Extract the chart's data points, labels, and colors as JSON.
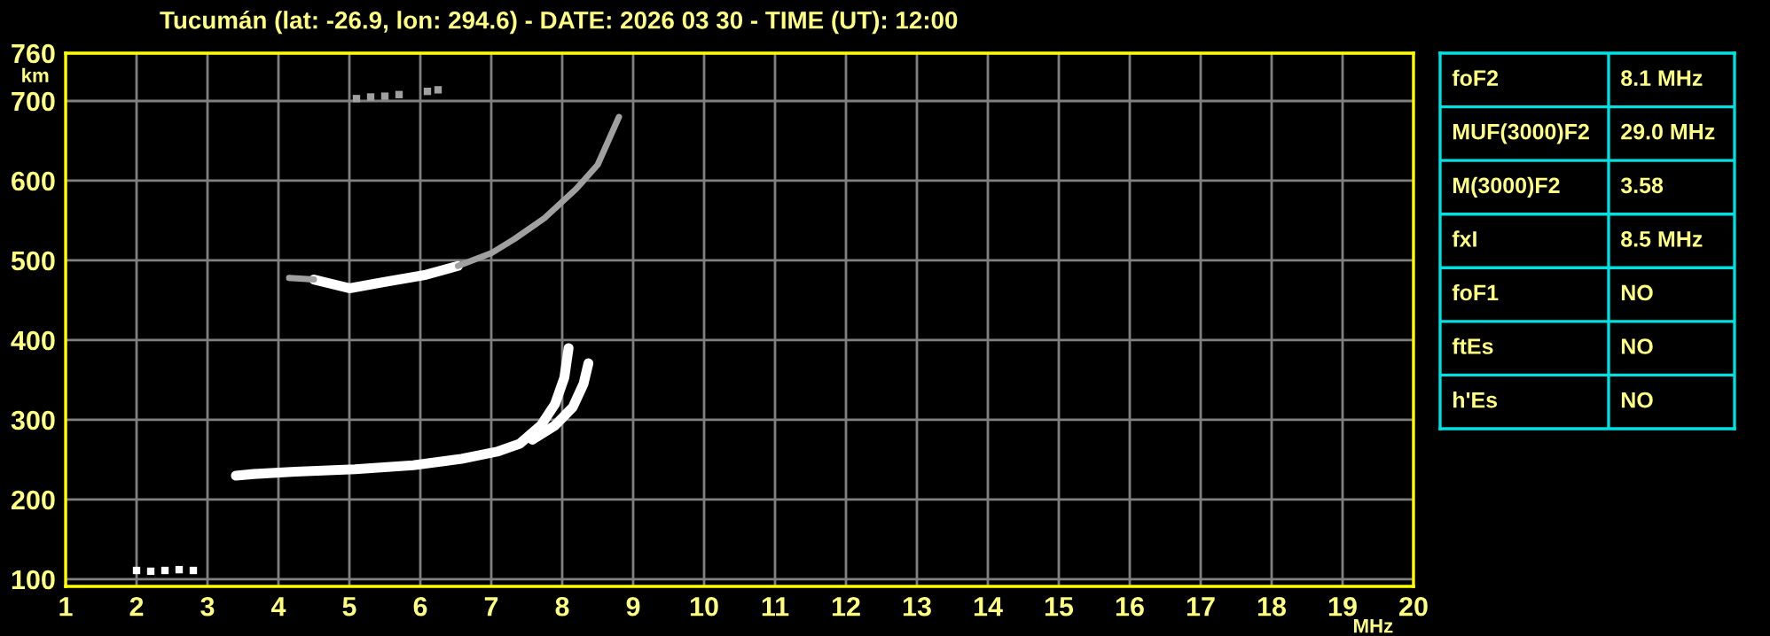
{
  "chart_data": [
    {
      "type": "line",
      "title": "Tucumán (lat: -26.9, lon: 294.6) - DATE: 2026 03 30 - TIME (UT): 12:00",
      "xlabel": "MHz",
      "ylabel": "km",
      "xlim": [
        1,
        20
      ],
      "ylim": [
        91,
        760
      ],
      "xticks": [
        1,
        2,
        3,
        4,
        5,
        6,
        7,
        8,
        9,
        10,
        11,
        12,
        13,
        14,
        15,
        16,
        17,
        18,
        19,
        20
      ],
      "yticks": [
        100,
        200,
        300,
        400,
        500,
        600,
        700,
        760
      ],
      "grid": true,
      "series": [
        {
          "color": "#ffffff",
          "x": [
            3.4,
            3.65,
            4.24,
            5.08,
            5.9,
            6.58,
            7.08,
            7.4,
            7.7,
            7.9,
            8.03,
            8.09
          ],
          "values": [
            230,
            232,
            235,
            238,
            243,
            251,
            260,
            270,
            293,
            320,
            353,
            390
          ]
        },
        {
          "color": "#ffffff",
          "x": [
            7.58,
            7.9,
            8.15,
            8.3,
            8.37
          ],
          "values": [
            275,
            293,
            316,
            345,
            371
          ]
        },
        {
          "color": "#ffffff",
          "x": [
            4.5,
            5.0,
            5.5,
            6.08,
            6.53
          ],
          "values": [
            476,
            465,
            473,
            482,
            493
          ]
        },
        {
          "color": "#a0a0a0",
          "x": [
            4.15,
            4.5
          ],
          "values": [
            478,
            476
          ]
        },
        {
          "color": "#a0a0a0",
          "x": [
            6.53,
            7.0,
            7.33,
            7.75,
            8.2,
            8.5,
            8.8
          ],
          "values": [
            493,
            509,
            527,
            553,
            590,
            620,
            680
          ]
        },
        {
          "type": "scatter",
          "color": "#a0a0a0",
          "x": [
            5.1,
            5.3,
            5.5,
            5.7,
            6.1,
            6.25
          ],
          "values": [
            703,
            705,
            706,
            708,
            712,
            714
          ]
        },
        {
          "type": "scatter",
          "color": "#ffffff",
          "x": [
            2.0,
            2.2,
            2.4,
            2.6,
            2.8
          ],
          "values": [
            111,
            110,
            111,
            112,
            111
          ]
        }
      ]
    },
    {
      "type": "other",
      "annotations": [
        "foF2",
        "8.1 MHz",
        "MUF(3000)F2",
        "29.0 MHz",
        "M(3000)F2",
        "3.58",
        "fxI",
        "8.5 MHz",
        "foF1",
        "NO",
        "ftEs",
        "NO",
        "h'Es",
        "NO"
      ]
    }
  ]
}
